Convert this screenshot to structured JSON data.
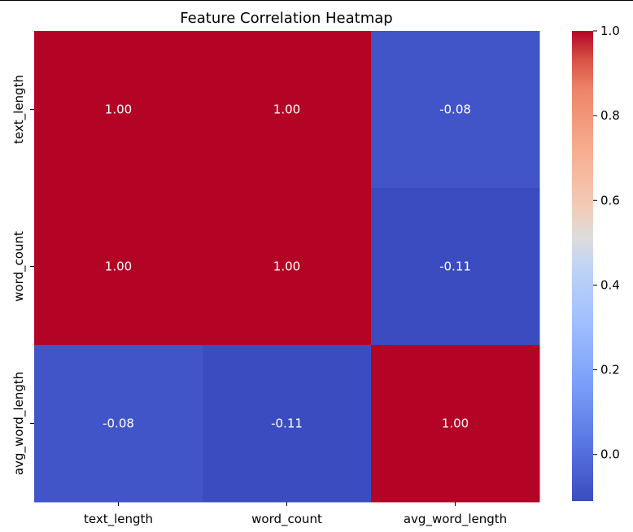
{
  "chart_data": {
    "type": "heatmap",
    "title": "Feature Correlation Heatmap",
    "xlabel": "",
    "ylabel": "",
    "x_categories": [
      "text_length",
      "word_count",
      "avg_word_length"
    ],
    "y_categories": [
      "text_length",
      "word_count",
      "avg_word_length"
    ],
    "values": [
      [
        1.0,
        1.0,
        -0.08
      ],
      [
        1.0,
        1.0,
        -0.11
      ],
      [
        -0.08,
        -0.11,
        1.0
      ]
    ],
    "annotations": [
      [
        "1.00",
        "1.00",
        "-0.08"
      ],
      [
        "1.00",
        "1.00",
        "-0.11"
      ],
      [
        "-0.08",
        "-0.11",
        "1.00"
      ]
    ],
    "colormap": "coolwarm",
    "vmin": -0.11,
    "vmax": 1.0,
    "colorbar_ticks": [
      {
        "value": 0.0,
        "label": "0.0"
      },
      {
        "value": 0.2,
        "label": "0.2"
      },
      {
        "value": 0.4,
        "label": "0.4"
      },
      {
        "value": 0.6,
        "label": "0.6"
      },
      {
        "value": 0.8,
        "label": "0.8"
      },
      {
        "value": 1.0,
        "label": "1.0"
      }
    ],
    "grid": false,
    "colorbar_position": "right"
  }
}
